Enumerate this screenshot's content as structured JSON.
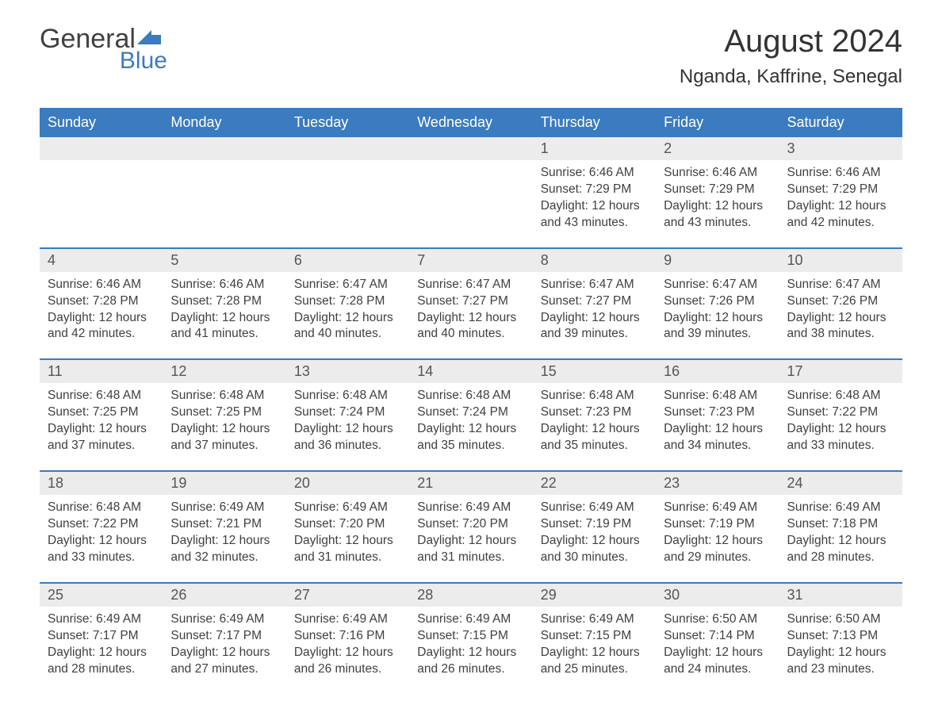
{
  "logo": {
    "text1": "General",
    "text2": "Blue"
  },
  "title": "August 2024",
  "location": "Nganda, Kaffrine, Senegal",
  "colors": {
    "header_bg": "#3b7bbf",
    "header_text": "#ffffff",
    "daynum_bg": "#ececec",
    "row_border": "#3b7bbf",
    "body_text": "#404040",
    "title_text": "#333333",
    "logo_blue": "#3b7bbf"
  },
  "weekdays": [
    "Sunday",
    "Monday",
    "Tuesday",
    "Wednesday",
    "Thursday",
    "Friday",
    "Saturday"
  ],
  "weeks": [
    [
      null,
      null,
      null,
      null,
      {
        "n": "1",
        "sr": "6:46 AM",
        "ss": "7:29 PM",
        "dl": "12 hours and 43 minutes."
      },
      {
        "n": "2",
        "sr": "6:46 AM",
        "ss": "7:29 PM",
        "dl": "12 hours and 43 minutes."
      },
      {
        "n": "3",
        "sr": "6:46 AM",
        "ss": "7:29 PM",
        "dl": "12 hours and 42 minutes."
      }
    ],
    [
      {
        "n": "4",
        "sr": "6:46 AM",
        "ss": "7:28 PM",
        "dl": "12 hours and 42 minutes."
      },
      {
        "n": "5",
        "sr": "6:46 AM",
        "ss": "7:28 PM",
        "dl": "12 hours and 41 minutes."
      },
      {
        "n": "6",
        "sr": "6:47 AM",
        "ss": "7:28 PM",
        "dl": "12 hours and 40 minutes."
      },
      {
        "n": "7",
        "sr": "6:47 AM",
        "ss": "7:27 PM",
        "dl": "12 hours and 40 minutes."
      },
      {
        "n": "8",
        "sr": "6:47 AM",
        "ss": "7:27 PM",
        "dl": "12 hours and 39 minutes."
      },
      {
        "n": "9",
        "sr": "6:47 AM",
        "ss": "7:26 PM",
        "dl": "12 hours and 39 minutes."
      },
      {
        "n": "10",
        "sr": "6:47 AM",
        "ss": "7:26 PM",
        "dl": "12 hours and 38 minutes."
      }
    ],
    [
      {
        "n": "11",
        "sr": "6:48 AM",
        "ss": "7:25 PM",
        "dl": "12 hours and 37 minutes."
      },
      {
        "n": "12",
        "sr": "6:48 AM",
        "ss": "7:25 PM",
        "dl": "12 hours and 37 minutes."
      },
      {
        "n": "13",
        "sr": "6:48 AM",
        "ss": "7:24 PM",
        "dl": "12 hours and 36 minutes."
      },
      {
        "n": "14",
        "sr": "6:48 AM",
        "ss": "7:24 PM",
        "dl": "12 hours and 35 minutes."
      },
      {
        "n": "15",
        "sr": "6:48 AM",
        "ss": "7:23 PM",
        "dl": "12 hours and 35 minutes."
      },
      {
        "n": "16",
        "sr": "6:48 AM",
        "ss": "7:23 PM",
        "dl": "12 hours and 34 minutes."
      },
      {
        "n": "17",
        "sr": "6:48 AM",
        "ss": "7:22 PM",
        "dl": "12 hours and 33 minutes."
      }
    ],
    [
      {
        "n": "18",
        "sr": "6:48 AM",
        "ss": "7:22 PM",
        "dl": "12 hours and 33 minutes."
      },
      {
        "n": "19",
        "sr": "6:49 AM",
        "ss": "7:21 PM",
        "dl": "12 hours and 32 minutes."
      },
      {
        "n": "20",
        "sr": "6:49 AM",
        "ss": "7:20 PM",
        "dl": "12 hours and 31 minutes."
      },
      {
        "n": "21",
        "sr": "6:49 AM",
        "ss": "7:20 PM",
        "dl": "12 hours and 31 minutes."
      },
      {
        "n": "22",
        "sr": "6:49 AM",
        "ss": "7:19 PM",
        "dl": "12 hours and 30 minutes."
      },
      {
        "n": "23",
        "sr": "6:49 AM",
        "ss": "7:19 PM",
        "dl": "12 hours and 29 minutes."
      },
      {
        "n": "24",
        "sr": "6:49 AM",
        "ss": "7:18 PM",
        "dl": "12 hours and 28 minutes."
      }
    ],
    [
      {
        "n": "25",
        "sr": "6:49 AM",
        "ss": "7:17 PM",
        "dl": "12 hours and 28 minutes."
      },
      {
        "n": "26",
        "sr": "6:49 AM",
        "ss": "7:17 PM",
        "dl": "12 hours and 27 minutes."
      },
      {
        "n": "27",
        "sr": "6:49 AM",
        "ss": "7:16 PM",
        "dl": "12 hours and 26 minutes."
      },
      {
        "n": "28",
        "sr": "6:49 AM",
        "ss": "7:15 PM",
        "dl": "12 hours and 26 minutes."
      },
      {
        "n": "29",
        "sr": "6:49 AM",
        "ss": "7:15 PM",
        "dl": "12 hours and 25 minutes."
      },
      {
        "n": "30",
        "sr": "6:50 AM",
        "ss": "7:14 PM",
        "dl": "12 hours and 24 minutes."
      },
      {
        "n": "31",
        "sr": "6:50 AM",
        "ss": "7:13 PM",
        "dl": "12 hours and 23 minutes."
      }
    ]
  ],
  "labels": {
    "sunrise": "Sunrise:",
    "sunset": "Sunset:",
    "daylight": "Daylight:"
  }
}
